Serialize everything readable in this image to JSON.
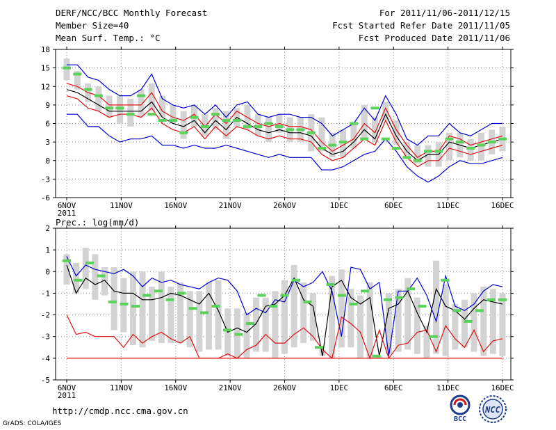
{
  "header": {
    "title": "DERF/NCC/BCC Monthly Forecast",
    "member_size": "Member Size=40",
    "variable": "Mean Surf. Temp.: °C",
    "forecast_period": "For 2011/11/06-2011/12/15",
    "started_refer_date": "Fcst Started Refer Date 2011/11/05",
    "produced_date": "Fcst Produced Date 2011/11/06"
  },
  "footer": {
    "url": "http://cmdp.ncc.cma.gov.cn",
    "grads_credit": "GrADS: COLA/IGES",
    "bcc_logo_text": "BCC",
    "ncc_logo_text": "NCC"
  },
  "colors": {
    "box": "#d3d3d3",
    "green_marker": "#5ad25a",
    "blue_line": "#0000d0",
    "red_line": "#e01010",
    "black_line": "#000000",
    "grid": "#888888"
  },
  "chart_data": [
    {
      "type": "line",
      "id": "temp",
      "title": "Mean Surf. Temp.: °C",
      "ylim": [
        -6,
        18
      ],
      "yticks": [
        -6,
        -3,
        0,
        3,
        6,
        9,
        12,
        15,
        18
      ],
      "x_tick_labels": [
        "6NOV",
        "11NOV",
        "16NOV",
        "21NOV",
        "26NOV",
        "1DEC",
        "6DEC",
        "11DEC",
        "16DEC"
      ],
      "x_tick_days": [
        0,
        5,
        10,
        15,
        20,
        25,
        30,
        35,
        40
      ],
      "year_label": "2011",
      "days": 40,
      "series": [
        {
          "name": "max",
          "color": "#0000d0",
          "values": [
            15.5,
            15.5,
            13.5,
            13,
            11.5,
            10.5,
            10.5,
            11.5,
            14,
            10,
            9,
            8.5,
            9,
            7.5,
            9,
            7,
            9,
            9.5,
            7.5,
            7,
            7.5,
            7.5,
            7,
            7,
            6,
            4,
            5,
            6,
            8.5,
            6.5,
            10.5,
            7.5,
            3.5,
            2.5,
            4,
            4,
            6,
            4.5,
            4,
            5,
            6,
            6
          ]
        },
        {
          "name": "p80",
          "color": "#e01010",
          "values": [
            12.5,
            12,
            11,
            10.5,
            9,
            9,
            9,
            9,
            11,
            8,
            7,
            6.5,
            7.5,
            5.5,
            7.5,
            6,
            8,
            7,
            6,
            5.5,
            6,
            5.5,
            5.5,
            5,
            3,
            1.5,
            2.5,
            3.5,
            6,
            4.5,
            8.5,
            5,
            2.5,
            0.5,
            1.5,
            1.5,
            4,
            3.5,
            2.5,
            3,
            3.5,
            4
          ]
        },
        {
          "name": "mean",
          "color": "#000000",
          "values": [
            11.5,
            11,
            10,
            9,
            8,
            8,
            8,
            8,
            9.5,
            7,
            6,
            5.5,
            6.5,
            4.5,
            6.5,
            5,
            7,
            6,
            5,
            4.5,
            5,
            4.5,
            4.5,
            4,
            2,
            1,
            1.5,
            3,
            5,
            3.5,
            7.5,
            4,
            1.5,
            0,
            1,
            1,
            3,
            2.5,
            2,
            2.5,
            3,
            3.5
          ]
        },
        {
          "name": "p20",
          "color": "#e01010",
          "values": [
            10.5,
            10,
            8.5,
            8,
            7,
            7.5,
            7.5,
            7,
            8.5,
            6,
            5,
            4.5,
            5.5,
            3.5,
            5.5,
            4,
            5.5,
            5,
            4,
            3.5,
            4,
            3.5,
            3.5,
            3,
            1,
            0,
            0.5,
            2,
            3.5,
            2.5,
            6.5,
            3,
            0.5,
            -1,
            0,
            0,
            2,
            1.5,
            1,
            1.5,
            2,
            2.5
          ]
        },
        {
          "name": "min",
          "color": "#0000d0",
          "values": [
            7.5,
            7.5,
            5.5,
            5.5,
            4,
            3,
            3.5,
            3.5,
            4,
            2.5,
            2.5,
            2,
            2.5,
            2,
            2,
            2.5,
            2,
            1.5,
            1,
            0.5,
            1,
            0.5,
            0.5,
            0.5,
            -1.5,
            -1.5,
            -1,
            0,
            1,
            1.5,
            3.5,
            1.5,
            -1,
            -2.5,
            -3.5,
            -2.5,
            -1,
            0,
            -0.5,
            -0.5,
            0,
            0.5
          ]
        }
      ],
      "box_low": [
        13,
        11.5,
        9.5,
        8,
        7,
        6,
        5.5,
        7,
        8,
        7,
        6,
        3.5,
        5.5,
        4,
        5,
        3.5,
        5.5,
        5,
        4,
        3,
        4.5,
        3,
        3,
        1.5,
        1.5,
        0.5,
        0.5,
        2,
        3.5,
        3,
        6.5,
        2.5,
        0.5,
        -0.5,
        -1,
        -1,
        0,
        0.5,
        0,
        0,
        1,
        1.5
      ],
      "box_high": [
        16.5,
        14.5,
        12.5,
        12,
        10.5,
        10.5,
        10,
        11.5,
        12.5,
        10.5,
        9,
        8,
        9,
        7.5,
        8.5,
        8,
        8.5,
        9,
        7.5,
        7,
        7.5,
        7,
        7,
        7.5,
        7,
        4.5,
        5,
        6,
        9,
        7,
        9.5,
        6.5,
        3,
        2.5,
        2.5,
        3,
        4.5,
        4.5,
        3.5,
        4.5,
        5,
        5.5
      ],
      "green_markers": [
        15,
        14,
        11.5,
        10.5,
        8.5,
        8.5,
        7.5,
        10.5,
        7.5,
        6.5,
        6.5,
        4.5,
        7,
        5.5,
        7.5,
        6.5,
        6.5,
        5.5,
        5.5,
        6,
        5.5,
        5,
        5,
        4.5,
        2,
        2.5,
        3,
        6,
        3.5,
        8.5,
        3.5,
        2,
        0.5,
        0,
        1.5,
        1.5,
        3.5,
        3,
        2,
        2.5,
        3,
        3.5
      ]
    },
    {
      "type": "line",
      "id": "prec",
      "title": "Prec.: log(mm/d)",
      "ylim": [
        -5,
        2
      ],
      "yticks": [
        -5,
        -4,
        -3,
        -2,
        -1,
        0,
        1,
        2
      ],
      "x_tick_labels": [
        "6NOV",
        "11NOV",
        "16NOV",
        "21NOV",
        "26NOV",
        "1DEC",
        "6DEC",
        "11DEC",
        "16DEC"
      ],
      "x_tick_days": [
        0,
        5,
        10,
        15,
        20,
        25,
        30,
        35,
        40
      ],
      "year_label": "2011",
      "days": 40,
      "series": [
        {
          "name": "max",
          "color": "#0000d0",
          "values": [
            0.7,
            -0.2,
            0.3,
            0.1,
            0,
            -0.1,
            0.1,
            -0.2,
            -0.7,
            -0.3,
            -0.5,
            -0.4,
            -0.6,
            -0.7,
            -0.8,
            -0.5,
            -0.3,
            -0.4,
            -0.9,
            -2,
            -1.7,
            -1.9,
            -1.3,
            -1.4,
            -0.4,
            -0.7,
            -0.5,
            0,
            -0.9,
            -3,
            0.2,
            0.1,
            -0.8,
            -0.5,
            -3.9,
            -0.9,
            -0.9,
            -0.3,
            -1.1,
            -2.3,
            -0.2,
            -1.6,
            -1.8,
            -1.5,
            -0.9,
            -0.6,
            -0.7
          ]
        },
        {
          "name": "mean",
          "color": "#000000",
          "values": [
            0.3,
            -1,
            -0.3,
            -0.6,
            -0.4,
            -0.9,
            -1,
            -1,
            -1.3,
            -1.3,
            -1.2,
            -1,
            -1.1,
            -1.3,
            -1.5,
            -1,
            -1.8,
            -2.8,
            -2.6,
            -2.8,
            -2.4,
            -1.6,
            -1.5,
            -1.1,
            -0.3,
            -1.3,
            -1.6,
            -3.9,
            -0.7,
            -0.4,
            -1.2,
            -1.5,
            -1.2,
            -3.9,
            -1.7,
            -1.5,
            -0.9,
            -1.9,
            -2.8,
            -0.8,
            -1.6,
            -1.8,
            -2.2,
            -1.7,
            -1.3,
            -1.4,
            -1.5
          ]
        },
        {
          "name": "p_low",
          "color": "#e01010",
          "values": [
            -2,
            -2.9,
            -2.8,
            -3,
            -3,
            -3,
            -3.5,
            -2.9,
            -3.3,
            -3,
            -2.8,
            -3.1,
            -3.3,
            -3,
            -4,
            -4,
            -4,
            -3.8,
            -4,
            -3.6,
            -3.4,
            -2.9,
            -3.3,
            -3.3,
            -2.9,
            -2.6,
            -3,
            -3.6,
            -4,
            -2.1,
            -2.4,
            -2.8,
            -4,
            -2.7,
            -4,
            -3.4,
            -3.3,
            -2.8,
            -2.7,
            -3.7,
            -2.5,
            -3.1,
            -3.5,
            -2.7,
            -3.7,
            -3.2,
            -3.1
          ]
        },
        {
          "name": "floor",
          "color": "#e01010",
          "values": [
            -4,
            -4
          ]
        }
      ],
      "box_low": [
        -0.6,
        -1,
        -0.8,
        -1.3,
        -1.1,
        -2.7,
        -2.8,
        -3.4,
        -3.5,
        -3.2,
        -3.3,
        -3.3,
        -3.3,
        -3.5,
        -3.7,
        -3.6,
        -3.6,
        -3.9,
        -4,
        -4,
        -3.7,
        -3.7,
        -4,
        -3.8,
        -3.5,
        -3.3,
        -3.2,
        -3.9,
        -4,
        -3.5,
        -3.5,
        -4,
        -4,
        -4,
        -3.8,
        -3.7,
        -3.6,
        -3.8,
        -4,
        -3.8,
        -3.9,
        -3.6,
        -3.5,
        -3.7,
        -3.9,
        -3.8,
        -3.9
      ],
      "box_high": [
        0.8,
        0.4,
        1.1,
        0.8,
        0.2,
        0.2,
        -0.3,
        0,
        0,
        -0.7,
        0,
        -0.7,
        -0.5,
        -0.9,
        -0.9,
        -0.5,
        -0.4,
        -1.7,
        -1.7,
        -1.9,
        -1.2,
        -1.2,
        -0.9,
        -0.4,
        0.3,
        -0.5,
        -1,
        -3.6,
        -0.2,
        0.1,
        -0.8,
        -1.1,
        -0.5,
        -3.9,
        -1,
        -0.8,
        -0.3,
        -1.2,
        -2.5,
        0.5,
        -0.6,
        -1.5,
        -1.3,
        -1,
        -0.7,
        -0.8,
        -1
      ],
      "green_markers": [
        0.5,
        -0.4,
        0.4,
        -0.2,
        -1.4,
        -1.5,
        -1.6,
        -1.1,
        -0.9,
        -1.3,
        -1,
        -1.7,
        -1.9,
        -1.6,
        -2.7,
        -2.9,
        -2.4,
        -1.1,
        -1.6,
        -1.1,
        -0.4,
        -1.4,
        -3.5,
        -0.6,
        -1.1,
        -1.5,
        -0.9,
        -3.9,
        -1.3,
        -1.2,
        -0.8,
        -1.6,
        -3,
        -0.4,
        -1.8,
        -2.3,
        -1.8,
        -1.3,
        -1.3
      ]
    }
  ]
}
